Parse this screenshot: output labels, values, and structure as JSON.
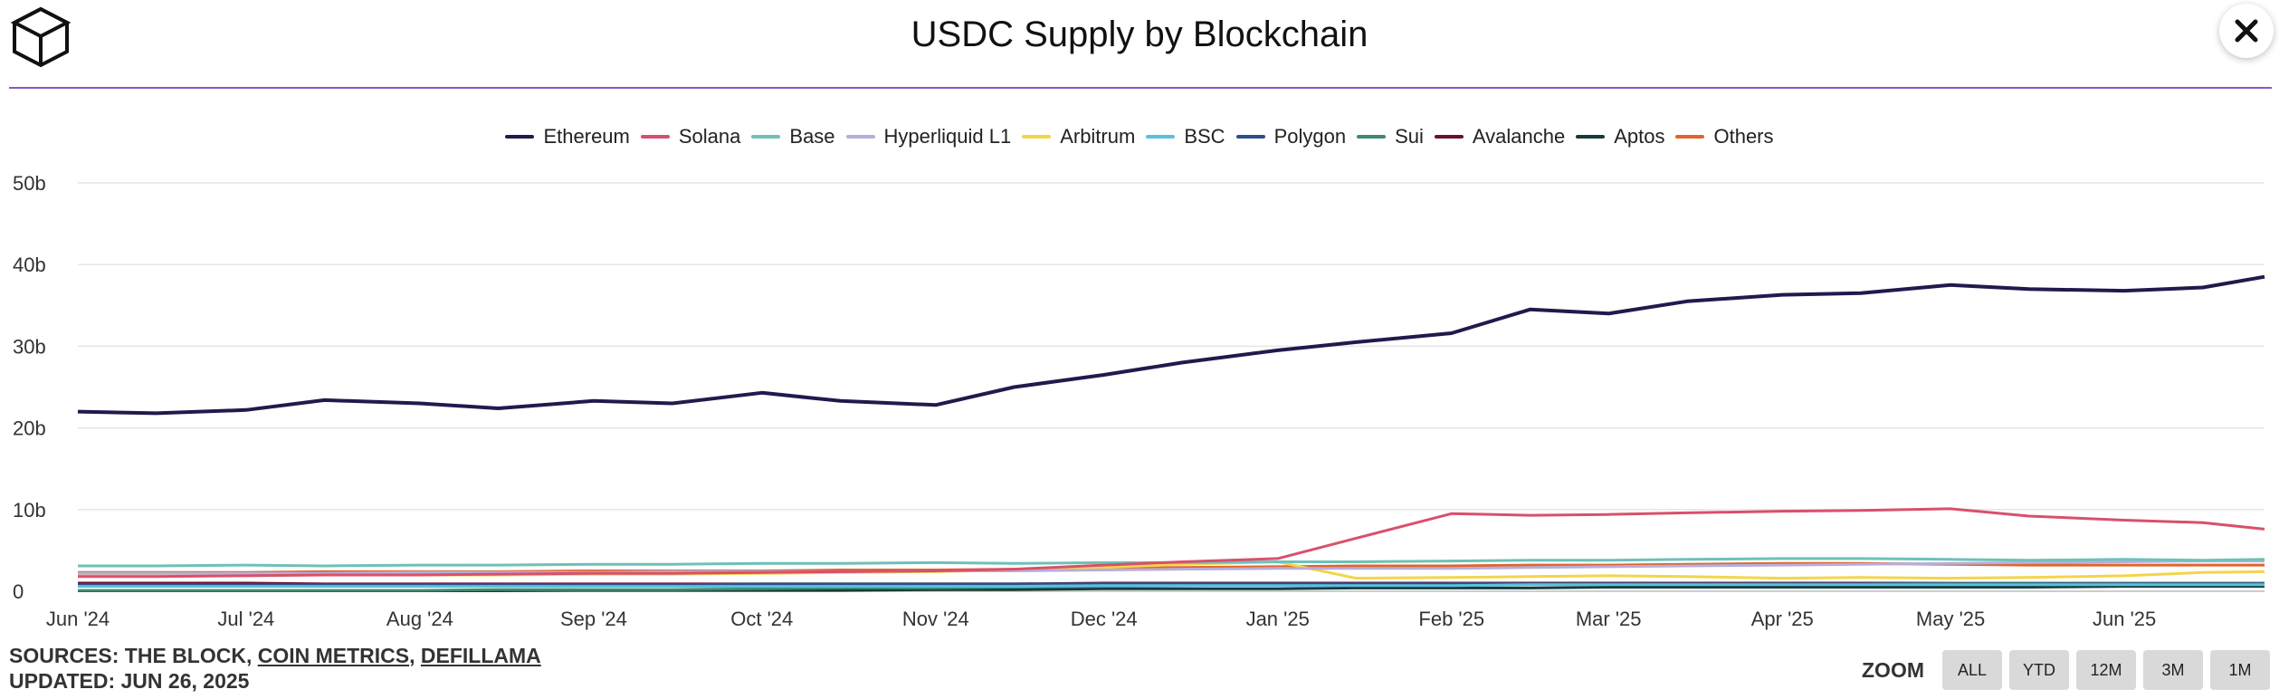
{
  "header": {
    "title": "USDC Supply by Blockchain",
    "logo_icon": "cube-icon",
    "close_icon": "close-icon"
  },
  "footer": {
    "sources_prefix": "SOURCES: THE BLOCK, ",
    "source_link_1": "COIN METRICS",
    "separator": ", ",
    "source_link_2": "DEFILLAMA",
    "updated": "UPDATED: JUN 26, 2025"
  },
  "zoom": {
    "label": "ZOOM",
    "buttons": [
      "ALL",
      "YTD",
      "12M",
      "3M",
      "1M"
    ]
  },
  "colors": {
    "accent_rule": "#8e55c8",
    "grid": "#e6e6e6"
  },
  "chart_data": {
    "type": "line",
    "title": "USDC Supply by Blockchain",
    "xlabel": "",
    "ylabel": "",
    "ylim": [
      0,
      50
    ],
    "y_ticks": [
      "0",
      "10b",
      "20b",
      "30b",
      "40b",
      "50b"
    ],
    "x_ticks": [
      "Jun '24",
      "Jul '24",
      "Aug '24",
      "Sep '24",
      "Oct '24",
      "Nov '24",
      "Dec '24",
      "Jan '25",
      "Feb '25",
      "Mar '25",
      "Apr '25",
      "May '25",
      "Jun '25"
    ],
    "grid": true,
    "legend_position": "top-center",
    "x": [
      "2024-06-01",
      "2024-06-15",
      "2024-07-01",
      "2024-07-15",
      "2024-08-01",
      "2024-08-15",
      "2024-09-01",
      "2024-09-15",
      "2024-10-01",
      "2024-10-15",
      "2024-11-01",
      "2024-11-15",
      "2024-12-01",
      "2024-12-15",
      "2025-01-01",
      "2025-01-15",
      "2025-02-01",
      "2025-02-15",
      "2025-03-01",
      "2025-03-15",
      "2025-04-01",
      "2025-04-15",
      "2025-05-01",
      "2025-05-15",
      "2025-06-01",
      "2025-06-15",
      "2025-06-26"
    ],
    "series": [
      {
        "name": "Ethereum",
        "color": "#1f1b4d",
        "values": [
          22.0,
          21.8,
          22.2,
          23.4,
          23.0,
          22.4,
          23.3,
          23.0,
          24.3,
          23.3,
          22.8,
          25.0,
          26.5,
          28.0,
          29.5,
          30.5,
          31.6,
          34.5,
          34.0,
          35.5,
          36.3,
          36.5,
          37.5,
          37.0,
          36.8,
          37.2,
          38.5
        ]
      },
      {
        "name": "Solana",
        "color": "#d9506a",
        "values": [
          1.8,
          1.8,
          1.9,
          2.0,
          2.0,
          2.1,
          2.2,
          2.2,
          2.3,
          2.4,
          2.5,
          2.7,
          3.2,
          3.6,
          4.0,
          6.5,
          9.5,
          9.3,
          9.4,
          9.6,
          9.8,
          9.9,
          10.1,
          9.2,
          8.7,
          8.4,
          7.6
        ]
      },
      {
        "name": "Base",
        "color": "#6ec1b7",
        "values": [
          3.1,
          3.1,
          3.2,
          3.1,
          3.2,
          3.2,
          3.3,
          3.3,
          3.4,
          3.4,
          3.5,
          3.4,
          3.5,
          3.5,
          3.6,
          3.6,
          3.7,
          3.8,
          3.8,
          3.9,
          4.0,
          4.0,
          3.9,
          3.8,
          3.9,
          3.8,
          3.9
        ]
      },
      {
        "name": "Hyperliquid L1",
        "color": "#b6aedb",
        "values": [
          2.2,
          2.2,
          2.2,
          2.2,
          2.3,
          2.3,
          2.3,
          2.4,
          2.4,
          2.4,
          2.5,
          2.5,
          2.6,
          2.7,
          2.8,
          2.8,
          2.8,
          2.9,
          3.0,
          3.1,
          3.2,
          3.3,
          3.4,
          3.5,
          3.6,
          3.7,
          3.7
        ]
      },
      {
        "name": "Arbitrum",
        "color": "#f3d54a",
        "values": [
          2.0,
          2.0,
          2.0,
          2.0,
          2.0,
          2.0,
          2.1,
          2.1,
          2.2,
          2.3,
          2.4,
          2.6,
          2.9,
          3.3,
          3.6,
          1.6,
          1.7,
          1.8,
          1.9,
          1.8,
          1.6,
          1.7,
          1.6,
          1.7,
          1.9,
          2.3,
          2.4
        ]
      },
      {
        "name": "BSC",
        "color": "#5bc0de",
        "values": [
          0.6,
          0.6,
          0.6,
          0.6,
          0.6,
          0.6,
          0.6,
          0.6,
          0.6,
          0.6,
          0.6,
          0.6,
          0.7,
          0.7,
          0.7,
          0.7,
          0.7,
          0.8,
          0.8,
          0.8,
          0.8,
          0.8,
          0.8,
          0.8,
          0.8,
          0.8,
          0.8
        ]
      },
      {
        "name": "Polygon",
        "color": "#2d4f8a",
        "values": [
          0.8,
          0.8,
          0.8,
          0.8,
          0.8,
          0.8,
          0.8,
          0.8,
          0.9,
          0.9,
          0.9,
          0.9,
          0.9,
          0.9,
          0.9,
          0.9,
          0.9,
          0.9,
          0.9,
          0.9,
          0.9,
          0.9,
          0.9,
          0.9,
          0.9,
          0.9,
          0.9
        ]
      },
      {
        "name": "Sui",
        "color": "#3e8a6e",
        "values": [
          0.1,
          0.1,
          0.1,
          0.1,
          0.1,
          0.2,
          0.2,
          0.2,
          0.3,
          0.4,
          0.4,
          0.5,
          0.6,
          0.7,
          0.8,
          0.8,
          0.9,
          0.9,
          0.9,
          0.9,
          0.9,
          0.9,
          1.0,
          1.0,
          1.0,
          1.0,
          1.0
        ]
      },
      {
        "name": "Avalanche",
        "color": "#6b1030",
        "values": [
          1.0,
          1.0,
          1.0,
          0.9,
          0.9,
          0.9,
          0.9,
          0.9,
          0.9,
          0.9,
          0.9,
          0.9,
          1.0,
          1.0,
          1.0,
          1.0,
          1.0,
          1.0,
          1.0,
          1.0,
          1.0,
          1.0,
          1.0,
          1.0,
          1.0,
          1.0,
          1.0
        ]
      },
      {
        "name": "Aptos",
        "color": "#163b3b",
        "values": [
          0.05,
          0.05,
          0.05,
          0.05,
          0.05,
          0.05,
          0.1,
          0.1,
          0.1,
          0.1,
          0.2,
          0.2,
          0.3,
          0.3,
          0.3,
          0.4,
          0.4,
          0.4,
          0.5,
          0.5,
          0.5,
          0.5,
          0.5,
          0.5,
          0.6,
          0.6,
          0.6
        ]
      },
      {
        "name": "Others",
        "color": "#e0652b",
        "values": [
          2.3,
          2.3,
          2.3,
          2.4,
          2.4,
          2.4,
          2.5,
          2.5,
          2.5,
          2.6,
          2.6,
          2.7,
          2.8,
          2.9,
          3.0,
          3.1,
          3.1,
          3.2,
          3.2,
          3.3,
          3.4,
          3.4,
          3.3,
          3.2,
          3.2,
          3.2,
          3.2
        ]
      }
    ]
  }
}
